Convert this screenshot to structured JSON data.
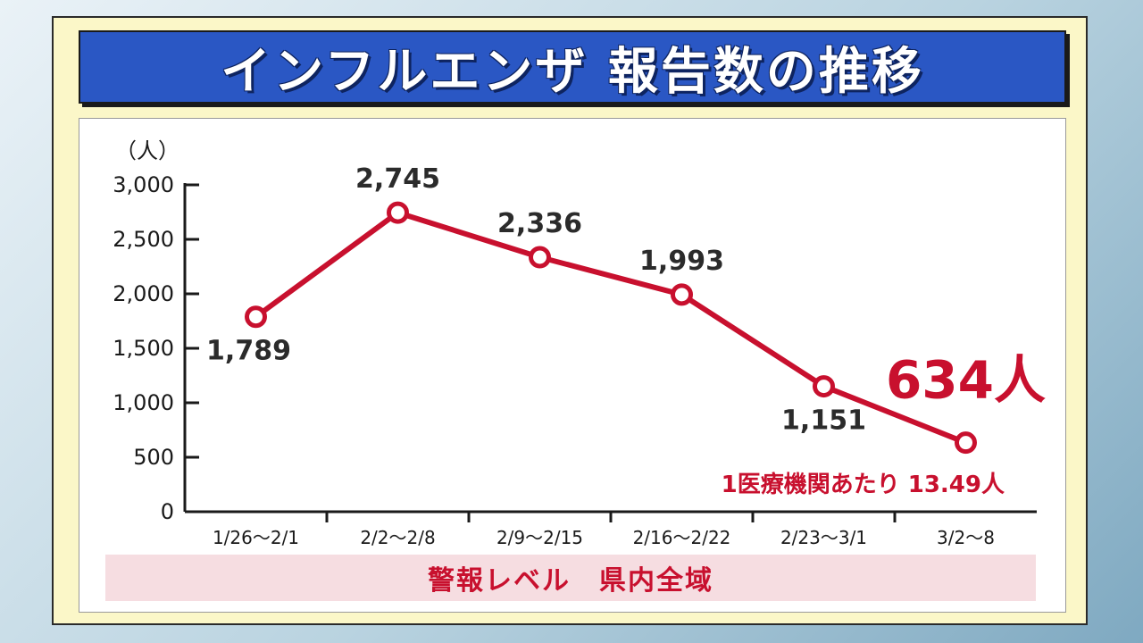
{
  "title": "インフルエンザ 報告数の推移",
  "colors": {
    "accent": "#c8102e",
    "title_bg": "#2a57c4",
    "board_bg": "#fbf7c8",
    "alert_bg": "#f6dde1"
  },
  "chart_data": {
    "type": "line",
    "ylabel": "（人）",
    "ylim": [
      0,
      3000
    ],
    "yticks": [
      0,
      500,
      1000,
      1500,
      2000,
      2500,
      3000
    ],
    "ytick_labels": [
      "0",
      "500",
      "1,000",
      "1,500",
      "2,000",
      "2,500",
      "3,000"
    ],
    "categories": [
      "1/26～2/1",
      "2/2～2/8",
      "2/9～2/15",
      "2/16～2/22",
      "2/23～3/1",
      "3/2～8"
    ],
    "values": [
      1789,
      2745,
      2336,
      1993,
      1151,
      634
    ],
    "data_labels": [
      "1,789",
      "2,745",
      "2,336",
      "1,993",
      "1,151",
      "634人"
    ],
    "grid": false,
    "annotation": "1医療機関あたり 13.49人"
  },
  "alert": {
    "text": "警報レベル　県内全域"
  }
}
